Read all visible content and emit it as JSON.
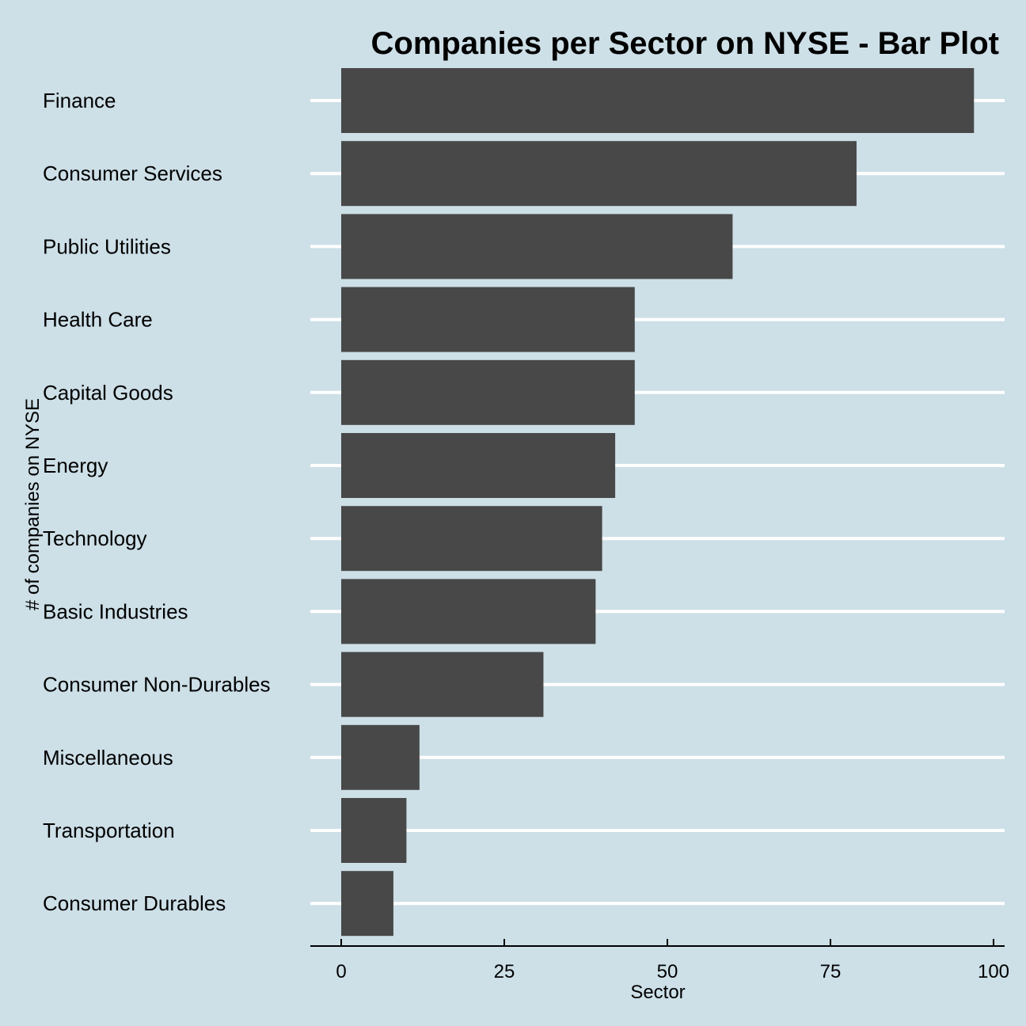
{
  "chart_data": {
    "type": "bar",
    "orientation": "horizontal",
    "title": "Companies per Sector on NYSE - Bar Plot",
    "xlabel": "Sector",
    "ylabel": "# of companies on NYSE",
    "categories": [
      "Finance",
      "Consumer Services",
      "Public Utilities",
      "Health Care",
      "Capital Goods",
      "Energy",
      "Technology",
      "Basic Industries",
      "Consumer Non-Durables",
      "Miscellaneous",
      "Transportation",
      "Consumer Durables"
    ],
    "values": [
      97,
      79,
      60,
      45,
      45,
      42,
      40,
      39,
      31,
      12,
      10,
      8
    ],
    "xlim": [
      0,
      100
    ],
    "ticks": [
      0,
      25,
      50,
      75,
      100
    ],
    "tick_labels": [
      "0",
      "25",
      "50",
      "75",
      "100"
    ],
    "grid": "horizontal",
    "legend": "none",
    "colors": {
      "background": "#cddfe7",
      "bar": "#484848",
      "grid": "#ffffff",
      "axis": "#000000"
    }
  }
}
